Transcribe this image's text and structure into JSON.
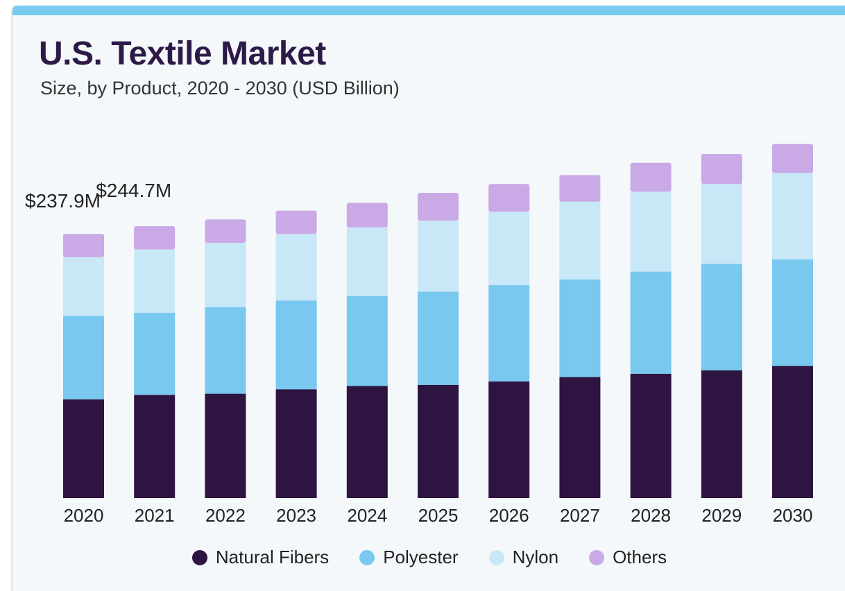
{
  "title": "U.S. Textile Market",
  "subtitle": "Size, by Product, 2020 - 2030 (USD Billion)",
  "chart_data": {
    "type": "bar",
    "stacked": true,
    "categories": [
      "2020",
      "2021",
      "2022",
      "2023",
      "2024",
      "2025",
      "2026",
      "2027",
      "2028",
      "2029",
      "2030"
    ],
    "series": [
      {
        "name": "Natural Fibers",
        "color": "#2e1441",
        "values": [
          89,
          93,
          94,
          98,
          101,
          102,
          105,
          109,
          112,
          115,
          119
        ]
      },
      {
        "name": "Polyester",
        "color": "#78c8ef",
        "values": [
          75,
          74,
          78,
          80,
          81,
          84,
          87,
          88,
          92,
          96,
          96
        ]
      },
      {
        "name": "Nylon",
        "color": "#c8e7f7",
        "values": [
          53,
          57,
          58,
          60,
          62,
          64,
          66,
          70,
          72,
          72,
          78
        ]
      },
      {
        "name": "Others",
        "color": "#c9a9e6",
        "values": [
          21,
          21,
          21,
          21,
          22,
          25,
          25,
          24,
          26,
          27,
          26
        ]
      }
    ],
    "data_labels": [
      {
        "category": "2020",
        "text": "$237.9M"
      },
      {
        "category": "2021",
        "text": "$244.7M"
      }
    ],
    "xlabel": "",
    "ylabel": "",
    "ylim": [
      0,
      330
    ],
    "grid": false,
    "legend_position": "bottom"
  }
}
